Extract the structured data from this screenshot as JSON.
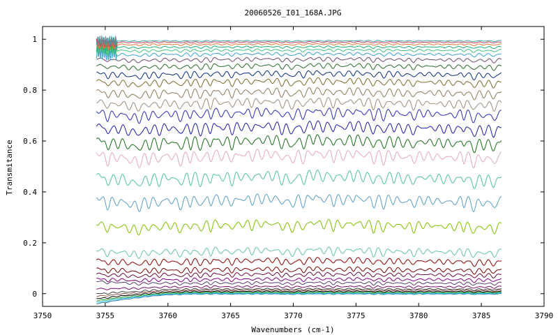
{
  "chart_data": {
    "type": "line",
    "title": "20060526_I01_168A.JPG",
    "xlabel": "Wavenumbers (cm-1)",
    "ylabel": "Transmitance",
    "xlim": [
      3750,
      3790
    ],
    "ylim": [
      -0.05,
      1.05
    ],
    "x_ticks": [
      "3750",
      "3755",
      "3760",
      "3765",
      "3770",
      "3775",
      "3780",
      "3785",
      "3790"
    ],
    "y_ticks": [
      "0",
      "0.2",
      "0.4",
      "0.6",
      "0.8",
      "1"
    ],
    "grid": false,
    "legend": "none",
    "x_range_of_data": [
      3754.3,
      3786.6
    ],
    "absorption_lines_cm1": [
      3755.2,
      3756.0,
      3756.9,
      3757.7,
      3758.5,
      3759.3,
      3760.2,
      3761.0,
      3761.8,
      3762.6,
      3763.4,
      3764.3,
      3765.1,
      3765.9,
      3766.7,
      3767.5,
      3768.3,
      3769.1,
      3769.9,
      3770.8,
      3771.6,
      3772.4,
      3773.2,
      3774.0,
      3774.8,
      3775.6,
      3776.4,
      3777.2,
      3778.0,
      3778.8,
      3779.6,
      3780.4,
      3781.2,
      3782.0,
      3782.8,
      3783.6,
      3784.4,
      3785.2,
      3786.0
    ],
    "series": [
      {
        "baseline": 0.0,
        "color": "#1f77b4"
      },
      {
        "baseline": 0.003,
        "color": "#17becf"
      },
      {
        "baseline": 0.006,
        "color": "#2ca02c"
      },
      {
        "baseline": 0.01,
        "color": "#000000"
      },
      {
        "baseline": 0.015,
        "color": "#8c564b"
      },
      {
        "baseline": 0.02,
        "color": "#444444"
      },
      {
        "baseline": 0.03,
        "color": "#7f0a6e"
      },
      {
        "baseline": 0.045,
        "color": "#5a3a6e"
      },
      {
        "baseline": 0.06,
        "color": "#800080"
      },
      {
        "baseline": 0.08,
        "color": "#6a0a3a"
      },
      {
        "baseline": 0.1,
        "color": "#7a0000"
      },
      {
        "baseline": 0.135,
        "color": "#8b0000"
      },
      {
        "baseline": 0.175,
        "color": "#66c2a5"
      },
      {
        "baseline": 0.28,
        "color": "#7fbf00"
      },
      {
        "baseline": 0.38,
        "color": "#5a9ec2"
      },
      {
        "baseline": 0.47,
        "color": "#4dc29a"
      },
      {
        "baseline": 0.555,
        "color": "#e3a8c0"
      },
      {
        "baseline": 0.61,
        "color": "#1a6b1a"
      },
      {
        "baseline": 0.665,
        "color": "#1a1aa8"
      },
      {
        "baseline": 0.72,
        "color": "#2a2ab8"
      },
      {
        "baseline": 0.76,
        "color": "#9c8c7c"
      },
      {
        "baseline": 0.8,
        "color": "#8c7a5a"
      },
      {
        "baseline": 0.84,
        "color": "#7a6a2a"
      },
      {
        "baseline": 0.87,
        "color": "#0a2a7a"
      },
      {
        "baseline": 0.9,
        "color": "#2a6a2a"
      },
      {
        "baseline": 0.925,
        "color": "#6a4a6a"
      },
      {
        "baseline": 0.945,
        "color": "#3aa0d0"
      },
      {
        "baseline": 0.96,
        "color": "#40c080"
      },
      {
        "baseline": 0.972,
        "color": "#20b070"
      },
      {
        "baseline": 0.982,
        "color": "#e07a30"
      },
      {
        "baseline": 0.99,
        "color": "#c04060"
      },
      {
        "baseline": 0.995,
        "color": "#40a0a0"
      }
    ]
  }
}
